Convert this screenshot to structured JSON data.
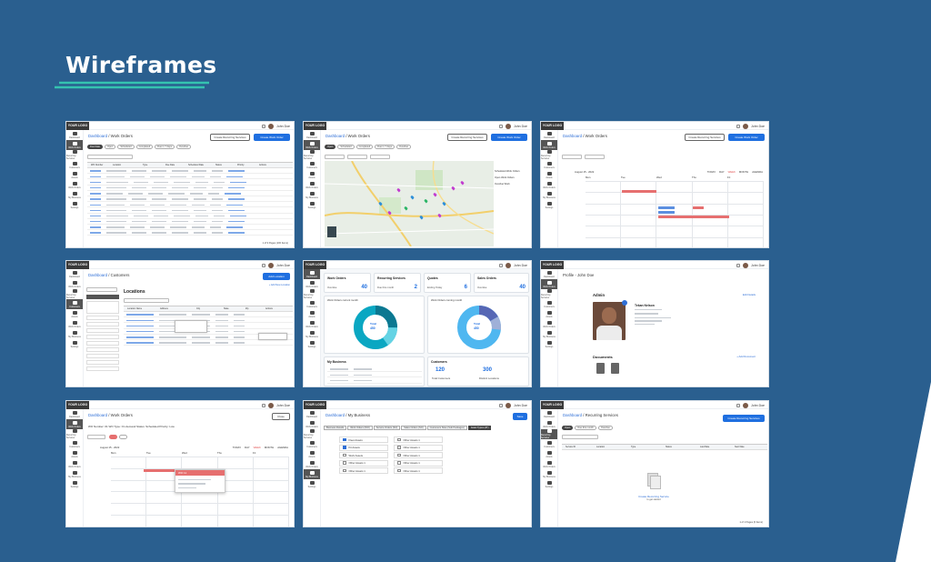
{
  "page": {
    "title": "Wireframes",
    "accent": "#35c3b0",
    "background": "#2a5f8f"
  },
  "common": {
    "logo": "YOUR LOGO",
    "user": "John Doe",
    "nav": [
      "Dashboard",
      "Work Orders",
      "Recurring Services",
      "Customers",
      "Assets",
      "Work Orders",
      "My Business",
      "Settings"
    ]
  },
  "f1": {
    "crumb_link": "Dashboard",
    "crumb_rest": " / Work Orders",
    "btn_outline": "Create Recurring Services",
    "btn_primary": "Create Work Order",
    "chips": [
      "Due Date",
      "Open",
      "Scheduled",
      "Completed",
      "Due in 7 days",
      "Overdue"
    ],
    "headers": [
      "WO Number",
      "Location",
      "Type",
      "Due Date",
      "Scheduled Date",
      "Status",
      "Priority",
      "Actions"
    ],
    "pager": "1 of 9 Pages (100 Items)"
  },
  "f2": {
    "crumb_link": "Dashboard",
    "crumb_rest": " / Work Orders",
    "btn_outline": "Create Recurring Services",
    "btn_primary": "Create Work Order",
    "chips": [
      "Open",
      "Scheduled",
      "Completed",
      "Due in 7 days",
      "Overdue"
    ],
    "legend": [
      "Scheduled Work Orders",
      "Open Work Orders",
      "Overdue Work"
    ]
  },
  "f3": {
    "crumb_link": "Dashboard",
    "crumb_rest": " / Work Orders",
    "btn_outline": "Create Recurring Services",
    "btn_primary": "Create Work Order",
    "month": "August 15 - 2022",
    "views": [
      "TODAY",
      "DAY",
      "WEEK",
      "MONTH",
      "AGENDA"
    ],
    "days": [
      "Mon",
      "Tue",
      "Wed",
      "Thu",
      "Fri"
    ]
  },
  "f4": {
    "crumb_link": "Dashboard",
    "crumb_rest": " / Customers",
    "section": "Locations",
    "btn_primary": "Add Location",
    "link": "+ Add New Location",
    "headers": [
      "Location Name",
      "Address",
      "City",
      "State",
      "Zip",
      "Actions"
    ]
  },
  "f5": {
    "cards": [
      {
        "title": "Work Orders",
        "sub": "Overdue",
        "num": "40"
      },
      {
        "title": "Recurring Services",
        "sub": "Due this month",
        "num": "2"
      },
      {
        "title": "Quotes",
        "sub": "Ending Today",
        "num": "6"
      },
      {
        "title": "Sales Orders",
        "sub": "Overdue",
        "num": "40"
      }
    ],
    "donut1_title": "Work Orders current month",
    "donut1_label": "Total",
    "donut1_value": "450",
    "donut2_title": "Work Orders coming month",
    "donut2_label": "Total",
    "donut2_value": "450",
    "biz_title": "My Business",
    "cust_title": "Customers",
    "cust_n1": "120",
    "cust_l1": "Total Customers",
    "cust_n2": "300",
    "cust_l2": "Distinct Locations"
  },
  "f6": {
    "crumb": "Profile - John Doe",
    "section": "Admin",
    "edit": "Edit Details",
    "name": "Tekan Nelson",
    "docs": "Documents",
    "add_doc": "+ Add Document"
  },
  "f7": {
    "crumb_link": "Dashboard",
    "crumb_rest": " / Work Orders",
    "btn_outline": "Close",
    "meta": "WO Number: 01   WO Type: On demand   Status: Scheduled   Priority: Low",
    "month": "August 15 - 2022",
    "views": [
      "TODAY",
      "DAY",
      "WEEK",
      "MONTH",
      "AGENDA"
    ],
    "popup": "WO 11",
    "days": [
      "Mon",
      "Tue",
      "Wed",
      "Thu",
      "Fri"
    ]
  },
  "f8": {
    "crumb_link": "Dashboard",
    "crumb_rest": " / My Business",
    "btn_primary": "Save",
    "tabs": [
      "Business Details",
      "Work Orders (WO)",
      "Service Orders (SO)",
      "Sales Orders (SO)",
      "Customers Sites (Sub Packages)",
      "Asset Types (AT)"
    ],
    "col1": [
      "Fleet Assets",
      "Kit Assets",
      "Work Assets",
      "Other Assets 1",
      "Other Assets 1"
    ],
    "col2": [
      "Other Assets 1",
      "Other Assets 1",
      "Other Assets 1",
      "Other Assets 1",
      "Other Assets 1"
    ]
  },
  "f9": {
    "crumb_link": "Dashboard",
    "crumb_rest": " / Recurring Services",
    "btn_primary": "Create Recurring Services",
    "chips": [
      "Open",
      "Due this month",
      "Overdue"
    ],
    "headers": [
      "Service ID",
      "Location",
      "Type",
      "Status",
      "Last Date",
      "Next Date"
    ],
    "empty": "Create Recurring Service",
    "empty_sub": "to get started",
    "pager": "1 of 1 Pages (0 Items)"
  }
}
